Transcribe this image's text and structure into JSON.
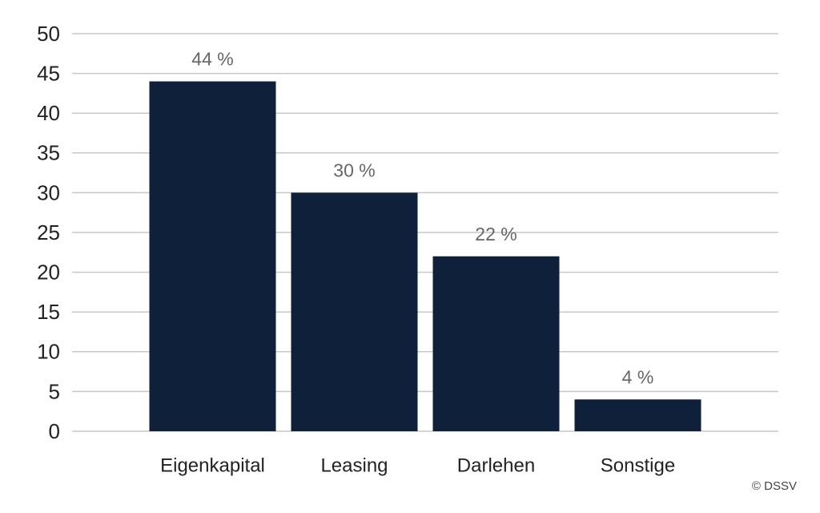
{
  "chart_data": {
    "type": "bar",
    "categories": [
      "Eigenkapital",
      "Leasing",
      "Darlehen",
      "Sonstige"
    ],
    "values": [
      44,
      30,
      22,
      4
    ],
    "value_labels": [
      "44 %",
      "30 %",
      "22 %",
      "4 %"
    ],
    "color": "#0f213a",
    "ylim": [
      0,
      50
    ],
    "yticks": [
      0,
      5,
      10,
      15,
      20,
      25,
      30,
      35,
      40,
      45,
      50
    ],
    "grid": true,
    "source": "© DSSV"
  }
}
